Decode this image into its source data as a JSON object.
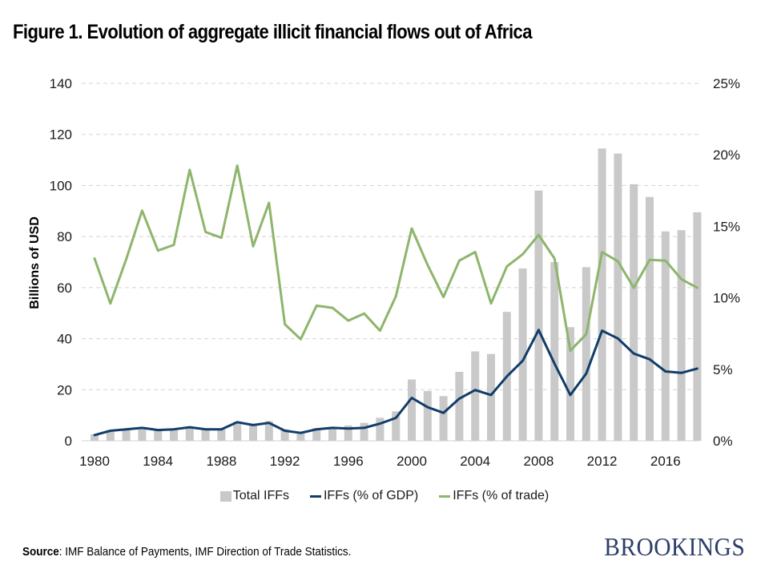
{
  "title": "Figure 1. Evolution of aggregate illicit financial flows out of Africa",
  "source_label": "Source",
  "source_text": ": IMF Balance of Payments, IMF Direction of Trade Statistics.",
  "brand": "BROOKINGS",
  "chart_data": {
    "type": "bar",
    "title": "Figure 1. Evolution of aggregate illicit financial flows out of Africa",
    "xlabel": "",
    "ylabel": "Billions of USD",
    "y2label": "",
    "ylim": [
      0,
      140
    ],
    "y2lim": [
      0,
      25
    ],
    "yticks": [
      "0",
      "20",
      "40",
      "60",
      "80",
      "100",
      "120",
      "140"
    ],
    "y2ticks": [
      "0%",
      "5%",
      "10%",
      "15%",
      "20%",
      "25%"
    ],
    "xticks": [
      "1980",
      "1984",
      "1988",
      "1992",
      "1996",
      "2000",
      "2004",
      "2008",
      "2012",
      "2016"
    ],
    "grid": true,
    "legend_position": "bottom",
    "colors": {
      "bars": "#c9c9c9",
      "gdp": "#123d6a",
      "trade": "#8db56c",
      "grid": "#d3d3d3"
    },
    "x": [
      1980,
      1981,
      1982,
      1983,
      1984,
      1985,
      1986,
      1987,
      1988,
      1989,
      1990,
      1991,
      1992,
      1993,
      1994,
      1995,
      1996,
      1997,
      1998,
      1999,
      2000,
      2001,
      2002,
      2003,
      2004,
      2005,
      2006,
      2007,
      2008,
      2009,
      2010,
      2011,
      2012,
      2013,
      2014,
      2015,
      2016,
      2017,
      2018
    ],
    "series": [
      {
        "name": "Total IFFs",
        "type": "bar",
        "axis": "left",
        "values": [
          2.5,
          3.5,
          4.5,
          5,
          4.5,
          4.5,
          5.5,
          4.5,
          4.5,
          7.5,
          6.5,
          7.7,
          4.5,
          3.5,
          5,
          5.5,
          6,
          7,
          9,
          11.5,
          24,
          19.5,
          17.5,
          27,
          35,
          34,
          50.5,
          67.5,
          98,
          70,
          44.5,
          68,
          114.5,
          112.5,
          100.5,
          95.5,
          82,
          82.5,
          89.5
        ]
      },
      {
        "name": "IFFs (% of GDP)",
        "type": "line",
        "axis": "right",
        "values": [
          0.4,
          0.7,
          0.8,
          0.9,
          0.75,
          0.8,
          0.95,
          0.8,
          0.8,
          1.3,
          1.1,
          1.25,
          0.7,
          0.55,
          0.8,
          0.9,
          0.85,
          0.9,
          1.2,
          1.6,
          3.0,
          2.35,
          1.95,
          2.95,
          3.55,
          3.2,
          4.5,
          5.6,
          7.75,
          5.4,
          3.2,
          4.7,
          7.7,
          7.15,
          6.1,
          5.7,
          4.85,
          4.75,
          5.05
        ]
      },
      {
        "name": "IFFs (% of trade)",
        "type": "line",
        "axis": "right",
        "values": [
          12.75,
          9.6,
          12.7,
          16.1,
          13.3,
          13.7,
          18.95,
          14.6,
          14.2,
          19.25,
          13.6,
          16.65,
          8.15,
          7.1,
          9.45,
          9.3,
          8.4,
          8.9,
          7.7,
          10.1,
          14.85,
          12.3,
          10.05,
          12.6,
          13.2,
          9.6,
          12.2,
          13.05,
          14.4,
          12.75,
          6.3,
          7.45,
          13.2,
          12.55,
          10.7,
          12.65,
          12.6,
          11.3,
          10.7
        ]
      }
    ]
  }
}
